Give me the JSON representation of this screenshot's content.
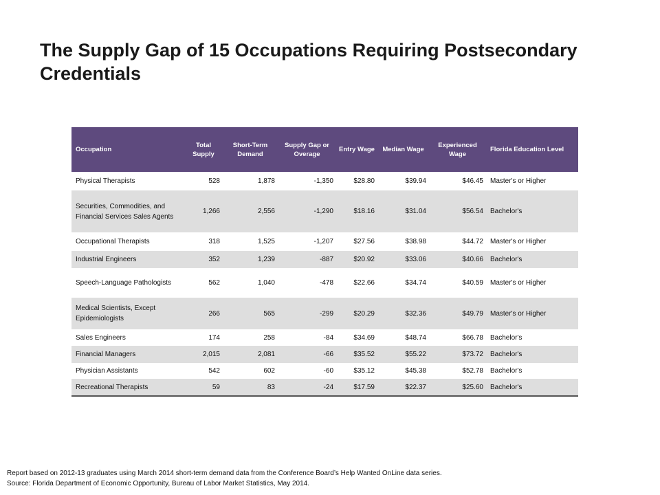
{
  "title": "The Supply Gap of 15 Occupations Requiring Postsecondary Credentials",
  "table": {
    "columns": [
      "Occupation",
      "Total Supply",
      "Short-Term Demand",
      "Supply Gap or Overage",
      "Entry Wage",
      "Median Wage",
      "Experienced Wage",
      "Florida Education Level"
    ],
    "rows": [
      {
        "occupation": "Physical Therapists",
        "supply": "528",
        "demand": "1,878",
        "gap": "-1,350",
        "entry": "$28.80",
        "median": "$39.94",
        "experienced": "$46.45",
        "education": "Master's or Higher"
      },
      {
        "occupation": "Securities, Commodities, and Financial Services Sales Agents",
        "supply": "1,266",
        "demand": "2,556",
        "gap": "-1,290",
        "entry": "$18.16",
        "median": "$31.04",
        "experienced": "$56.54",
        "education": "Bachelor's"
      },
      {
        "occupation": "Occupational Therapists",
        "supply": "318",
        "demand": "1,525",
        "gap": "-1,207",
        "entry": "$27.56",
        "median": "$38.98",
        "experienced": "$44.72",
        "education": "Master's or Higher"
      },
      {
        "occupation": "Industrial Engineers",
        "supply": "352",
        "demand": "1,239",
        "gap": "-887",
        "entry": "$20.92",
        "median": "$33.06",
        "experienced": "$40.66",
        "education": "Bachelor's"
      },
      {
        "occupation": "Speech-Language Pathologists",
        "supply": "562",
        "demand": "1,040",
        "gap": "-478",
        "entry": "$22.66",
        "median": "$34.74",
        "experienced": "$40.59",
        "education": "Master's or Higher"
      },
      {
        "occupation": "Medical Scientists, Except Epidemiologists",
        "supply": "266",
        "demand": "565",
        "gap": "-299",
        "entry": "$20.29",
        "median": "$32.36",
        "experienced": "$49.79",
        "education": "Master's or Higher"
      },
      {
        "occupation": "Sales Engineers",
        "supply": "174",
        "demand": "258",
        "gap": "-84",
        "entry": "$34.69",
        "median": "$48.74",
        "experienced": "$66.78",
        "education": "Bachelor's"
      },
      {
        "occupation": "Financial Managers",
        "supply": "2,015",
        "demand": "2,081",
        "gap": "-66",
        "entry": "$35.52",
        "median": "$55.22",
        "experienced": "$73.72",
        "education": "Bachelor's"
      },
      {
        "occupation": "Physician Assistants",
        "supply": "542",
        "demand": "602",
        "gap": "-60",
        "entry": "$35.12",
        "median": "$45.38",
        "experienced": "$52.78",
        "education": "Bachelor's"
      },
      {
        "occupation": "Recreational Therapists",
        "supply": "59",
        "demand": "83",
        "gap": "-24",
        "entry": "$17.59",
        "median": "$22.37",
        "experienced": "$25.60",
        "education": "Bachelor's"
      }
    ]
  },
  "footnotes": [
    "Report based on 2012-13 graduates using March 2014 short-term demand data from the Conference Board’s Help Wanted OnLine data series.",
    "Source:  Florida Department of Economic Opportunity, Bureau of Labor Market Statistics,  May 2014."
  ],
  "colors": {
    "header_bg": "#5e4a7e",
    "shade_row": "#dedede"
  }
}
